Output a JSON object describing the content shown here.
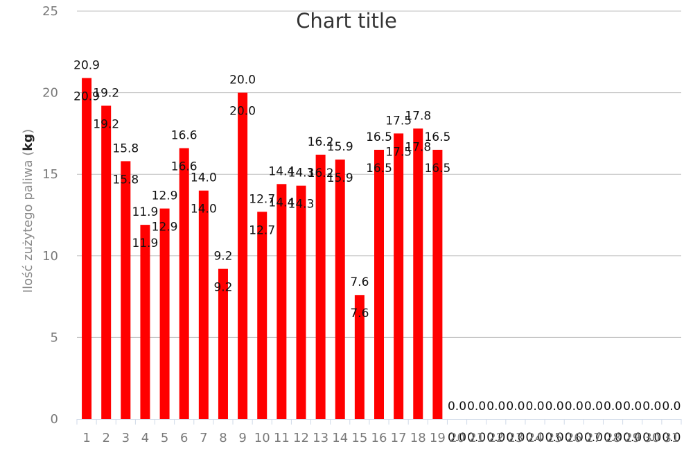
{
  "chart_data": {
    "type": "bar",
    "title": "Chart title",
    "ylabel": {
      "prefix": "Ilość zużytego paliwa (",
      "bold": "kg",
      "suffix": ")"
    },
    "xlabel": "",
    "categories": [
      "1",
      "2",
      "3",
      "4",
      "5",
      "6",
      "7",
      "8",
      "9",
      "10",
      "11",
      "12",
      "13",
      "14",
      "15",
      "16",
      "17",
      "18",
      "19",
      "20",
      "21",
      "22",
      "23",
      "24",
      "25",
      "26",
      "27",
      "28",
      "29",
      "30",
      "31"
    ],
    "values": [
      20.9,
      19.2,
      15.8,
      11.9,
      12.9,
      16.6,
      14.0,
      9.2,
      20.0,
      12.7,
      14.4,
      14.3,
      16.2,
      15.9,
      7.6,
      16.5,
      17.5,
      17.8,
      16.5,
      0.0,
      0.0,
      0.0,
      0.0,
      0.0,
      0.0,
      0.0,
      0.0,
      0.0,
      0.0,
      0.0,
      0.0
    ],
    "data_labels": [
      "20.9",
      "19.2",
      "15.8",
      "11.9",
      "12.9",
      "16.6",
      "14.0",
      "9.2",
      "20.0",
      "12.7",
      "14.4",
      "14.3",
      "16.2",
      "15.9",
      "7.6",
      "16.5",
      "17.5",
      "17.8",
      "16.5",
      "0.0",
      "0.0",
      "0.0",
      "0.0",
      "0.0",
      "0.0",
      "0.0",
      "0.0",
      "0.0",
      "0.0",
      "0.0",
      "0.0"
    ],
    "ylim": [
      0,
      25
    ],
    "yticks": [
      "0",
      "5",
      "10",
      "15",
      "20",
      "25"
    ],
    "grid": true,
    "legend": "none",
    "bar_color": "#ff0000",
    "grid_color": "#bdbdbd"
  }
}
